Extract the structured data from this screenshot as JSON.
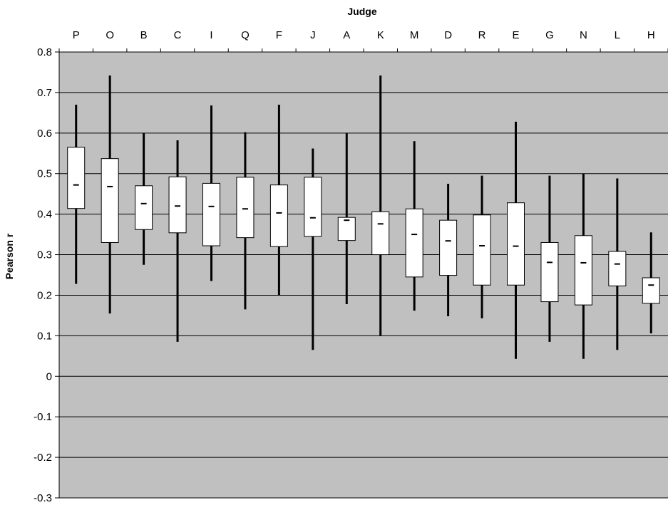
{
  "chart_data": {
    "type": "box",
    "xlabel": "Judge",
    "ylabel": "Pearson r",
    "ylim": [
      -0.3,
      0.8
    ],
    "yticks": [
      "0.8",
      "0.7",
      "0.6",
      "0.5",
      "0.4",
      "0.3",
      "0.2",
      "0.1",
      "0",
      "-0.1",
      "-0.2",
      "-0.3"
    ],
    "ytick_values": [
      0.8,
      0.7,
      0.6,
      0.5,
      0.4,
      0.3,
      0.2,
      0.1,
      0,
      -0.1,
      -0.2,
      -0.3
    ],
    "x_axis_position": "top",
    "grid": true,
    "plot_background": "#c0c0c0",
    "box_color": "#ffffff",
    "line_color": "#000000",
    "categories": [
      "P",
      "O",
      "B",
      "C",
      "I",
      "Q",
      "F",
      "J",
      "A",
      "K",
      "M",
      "D",
      "R",
      "E",
      "G",
      "N",
      "L",
      "H"
    ],
    "boxes": [
      {
        "judge": "P",
        "min": 0.228,
        "q1": 0.414,
        "median": 0.472,
        "q3": 0.565,
        "max": 0.67
      },
      {
        "judge": "O",
        "min": 0.155,
        "q1": 0.33,
        "median": 0.468,
        "q3": 0.537,
        "max": 0.742
      },
      {
        "judge": "B",
        "min": 0.275,
        "q1": 0.362,
        "median": 0.426,
        "q3": 0.47,
        "max": 0.6
      },
      {
        "judge": "C",
        "min": 0.085,
        "q1": 0.354,
        "median": 0.42,
        "q3": 0.492,
        "max": 0.582
      },
      {
        "judge": "I",
        "min": 0.235,
        "q1": 0.322,
        "median": 0.419,
        "q3": 0.476,
        "max": 0.668
      },
      {
        "judge": "Q",
        "min": 0.165,
        "q1": 0.342,
        "median": 0.413,
        "q3": 0.491,
        "max": 0.602
      },
      {
        "judge": "F",
        "min": 0.2,
        "q1": 0.32,
        "median": 0.403,
        "q3": 0.472,
        "max": 0.67
      },
      {
        "judge": "J",
        "min": 0.065,
        "q1": 0.345,
        "median": 0.391,
        "q3": 0.491,
        "max": 0.562
      },
      {
        "judge": "A",
        "min": 0.178,
        "q1": 0.335,
        "median": 0.385,
        "q3": 0.392,
        "max": 0.6
      },
      {
        "judge": "K",
        "min": 0.1,
        "q1": 0.3,
        "median": 0.376,
        "q3": 0.406,
        "max": 0.742
      },
      {
        "judge": "M",
        "min": 0.162,
        "q1": 0.245,
        "median": 0.35,
        "q3": 0.413,
        "max": 0.58
      },
      {
        "judge": "D",
        "min": 0.148,
        "q1": 0.249,
        "median": 0.334,
        "q3": 0.385,
        "max": 0.475
      },
      {
        "judge": "R",
        "min": 0.143,
        "q1": 0.225,
        "median": 0.322,
        "q3": 0.398,
        "max": 0.495
      },
      {
        "judge": "E",
        "min": 0.043,
        "q1": 0.225,
        "median": 0.321,
        "q3": 0.428,
        "max": 0.628
      },
      {
        "judge": "G",
        "min": 0.085,
        "q1": 0.184,
        "median": 0.281,
        "q3": 0.33,
        "max": 0.495
      },
      {
        "judge": "N",
        "min": 0.043,
        "q1": 0.176,
        "median": 0.28,
        "q3": 0.347,
        "max": 0.5
      },
      {
        "judge": "L",
        "min": 0.065,
        "q1": 0.223,
        "median": 0.277,
        "q3": 0.308,
        "max": 0.488
      },
      {
        "judge": "H",
        "min": 0.106,
        "q1": 0.18,
        "median": 0.225,
        "q3": 0.243,
        "max": 0.355
      }
    ]
  }
}
